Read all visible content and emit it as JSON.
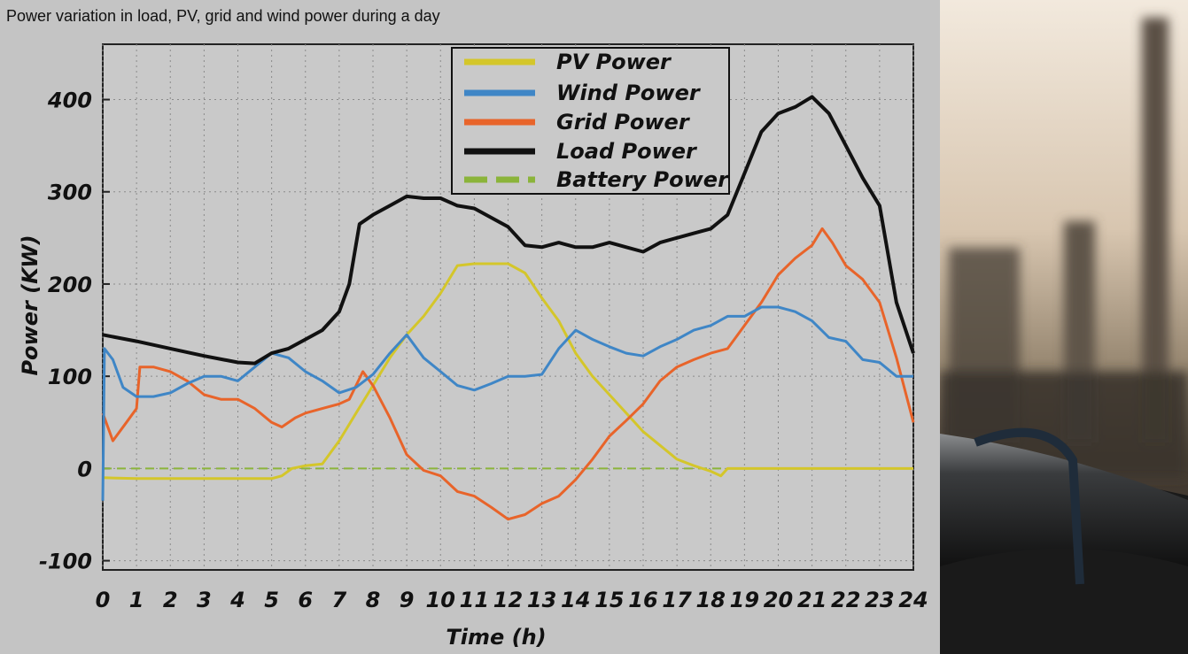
{
  "page": {
    "caption": "Power variation in load, PV, grid and wind power during a day"
  },
  "colors": {
    "pv": "#d4c62a",
    "wind": "#3f86c6",
    "grid": "#e8642a",
    "load": "#111111",
    "battery": "#8bb43a"
  },
  "photo": {
    "description_icon": "pipeline-photo"
  },
  "chart_data": {
    "type": "line",
    "title": "Power variation in load, PV, grid and wind power during a day",
    "xlabel": "Time (h)",
    "ylabel": "Power (KW)",
    "xlim": [
      0,
      24
    ],
    "ylim": [
      -110,
      460
    ],
    "grid": true,
    "legend_position": "top-center",
    "xticks": [
      0,
      1,
      2,
      3,
      4,
      5,
      6,
      7,
      8,
      9,
      10,
      11,
      12,
      13,
      14,
      15,
      16,
      17,
      18,
      19,
      20,
      21,
      22,
      23,
      24
    ],
    "yticks": [
      -100,
      0,
      100,
      200,
      300,
      400
    ],
    "series": [
      {
        "name": "PV Power",
        "key": "pv",
        "style": "solid",
        "points": [
          [
            0,
            -10
          ],
          [
            1,
            -11
          ],
          [
            2,
            -11
          ],
          [
            3,
            -11
          ],
          [
            4,
            -11
          ],
          [
            5,
            -11
          ],
          [
            5.3,
            -8
          ],
          [
            5.6,
            0
          ],
          [
            6,
            3
          ],
          [
            6.5,
            5
          ],
          [
            7,
            30
          ],
          [
            7.5,
            60
          ],
          [
            8,
            90
          ],
          [
            8.5,
            120
          ],
          [
            9,
            145
          ],
          [
            9.5,
            165
          ],
          [
            10,
            190
          ],
          [
            10.5,
            220
          ],
          [
            11,
            222
          ],
          [
            11.5,
            222
          ],
          [
            12,
            222
          ],
          [
            12.5,
            212
          ],
          [
            13,
            185
          ],
          [
            13.5,
            160
          ],
          [
            14,
            125
          ],
          [
            14.5,
            100
          ],
          [
            15,
            80
          ],
          [
            15.5,
            60
          ],
          [
            16,
            40
          ],
          [
            16.5,
            25
          ],
          [
            17,
            10
          ],
          [
            17.5,
            3
          ],
          [
            18,
            -3
          ],
          [
            18.3,
            -8
          ],
          [
            18.5,
            0
          ],
          [
            19,
            0
          ],
          [
            20,
            0
          ],
          [
            21,
            0
          ],
          [
            22,
            0
          ],
          [
            23,
            0
          ],
          [
            24,
            0
          ]
        ]
      },
      {
        "name": "Wind Power",
        "key": "wind",
        "style": "solid",
        "points": [
          [
            0,
            -35
          ],
          [
            0.05,
            130
          ],
          [
            0.3,
            118
          ],
          [
            0.6,
            88
          ],
          [
            1,
            78
          ],
          [
            1.5,
            78
          ],
          [
            2,
            82
          ],
          [
            2.5,
            92
          ],
          [
            3,
            100
          ],
          [
            3.5,
            100
          ],
          [
            4,
            95
          ],
          [
            4.5,
            110
          ],
          [
            5,
            125
          ],
          [
            5.5,
            120
          ],
          [
            6,
            105
          ],
          [
            6.5,
            95
          ],
          [
            7,
            82
          ],
          [
            7.5,
            88
          ],
          [
            8,
            102
          ],
          [
            8.5,
            125
          ],
          [
            9,
            145
          ],
          [
            9.5,
            120
          ],
          [
            10,
            105
          ],
          [
            10.5,
            90
          ],
          [
            11,
            85
          ],
          [
            11.5,
            92
          ],
          [
            12,
            100
          ],
          [
            12.5,
            100
          ],
          [
            13,
            102
          ],
          [
            13.5,
            130
          ],
          [
            14,
            150
          ],
          [
            14.5,
            140
          ],
          [
            15,
            132
          ],
          [
            15.5,
            125
          ],
          [
            16,
            122
          ],
          [
            16.5,
            132
          ],
          [
            17,
            140
          ],
          [
            17.5,
            150
          ],
          [
            18,
            155
          ],
          [
            18.5,
            165
          ],
          [
            19,
            165
          ],
          [
            19.5,
            175
          ],
          [
            20,
            175
          ],
          [
            20.5,
            170
          ],
          [
            21,
            160
          ],
          [
            21.5,
            142
          ],
          [
            22,
            138
          ],
          [
            22.5,
            118
          ],
          [
            23,
            115
          ],
          [
            23.5,
            100
          ],
          [
            24,
            100
          ]
        ]
      },
      {
        "name": "Grid Power",
        "key": "grid",
        "style": "solid",
        "points": [
          [
            0,
            60
          ],
          [
            0.3,
            30
          ],
          [
            0.7,
            50
          ],
          [
            1,
            65
          ],
          [
            1.1,
            110
          ],
          [
            1.5,
            110
          ],
          [
            2,
            105
          ],
          [
            2.5,
            95
          ],
          [
            3,
            80
          ],
          [
            3.5,
            75
          ],
          [
            4,
            75
          ],
          [
            4.5,
            65
          ],
          [
            5,
            50
          ],
          [
            5.3,
            45
          ],
          [
            5.7,
            55
          ],
          [
            6,
            60
          ],
          [
            6.5,
            65
          ],
          [
            7,
            70
          ],
          [
            7.3,
            75
          ],
          [
            7.7,
            105
          ],
          [
            8,
            90
          ],
          [
            8.5,
            55
          ],
          [
            9,
            15
          ],
          [
            9.5,
            -2
          ],
          [
            10,
            -8
          ],
          [
            10.5,
            -25
          ],
          [
            11,
            -30
          ],
          [
            11.5,
            -42
          ],
          [
            12,
            -55
          ],
          [
            12.5,
            -50
          ],
          [
            13,
            -38
          ],
          [
            13.5,
            -30
          ],
          [
            14,
            -12
          ],
          [
            14.5,
            10
          ],
          [
            15,
            35
          ],
          [
            15.5,
            52
          ],
          [
            16,
            70
          ],
          [
            16.5,
            95
          ],
          [
            17,
            110
          ],
          [
            17.5,
            118
          ],
          [
            18,
            125
          ],
          [
            18.5,
            130
          ],
          [
            19,
            155
          ],
          [
            19.5,
            180
          ],
          [
            20,
            210
          ],
          [
            20.5,
            228
          ],
          [
            21,
            242
          ],
          [
            21.3,
            260
          ],
          [
            21.6,
            245
          ],
          [
            22,
            220
          ],
          [
            22.5,
            205
          ],
          [
            23,
            180
          ],
          [
            23.5,
            120
          ],
          [
            24,
            50
          ]
        ]
      },
      {
        "name": "Load Power",
        "key": "load",
        "style": "solid",
        "points": [
          [
            0,
            145
          ],
          [
            1,
            138
          ],
          [
            2,
            130
          ],
          [
            3,
            122
          ],
          [
            4,
            115
          ],
          [
            4.5,
            114
          ],
          [
            5,
            125
          ],
          [
            5.5,
            130
          ],
          [
            6,
            140
          ],
          [
            6.5,
            150
          ],
          [
            7,
            170
          ],
          [
            7.3,
            200
          ],
          [
            7.6,
            265
          ],
          [
            8,
            275
          ],
          [
            8.5,
            285
          ],
          [
            9,
            295
          ],
          [
            9.5,
            293
          ],
          [
            10,
            293
          ],
          [
            10.5,
            285
          ],
          [
            11,
            282
          ],
          [
            11.5,
            272
          ],
          [
            12,
            262
          ],
          [
            12.5,
            242
          ],
          [
            13,
            240
          ],
          [
            13.5,
            245
          ],
          [
            14,
            240
          ],
          [
            14.5,
            240
          ],
          [
            15,
            245
          ],
          [
            15.5,
            240
          ],
          [
            16,
            235
          ],
          [
            16.5,
            245
          ],
          [
            17,
            250
          ],
          [
            17.5,
            255
          ],
          [
            18,
            260
          ],
          [
            18.5,
            275
          ],
          [
            19,
            320
          ],
          [
            19.5,
            365
          ],
          [
            20,
            385
          ],
          [
            20.5,
            392
          ],
          [
            21,
            403
          ],
          [
            21.5,
            385
          ],
          [
            22,
            350
          ],
          [
            22.5,
            315
          ],
          [
            23,
            285
          ],
          [
            23.5,
            180
          ],
          [
            24,
            125
          ]
        ]
      },
      {
        "name": "Battery Power",
        "key": "battery",
        "style": "dashed",
        "points": [
          [
            0,
            0
          ],
          [
            24,
            0
          ]
        ]
      }
    ]
  }
}
